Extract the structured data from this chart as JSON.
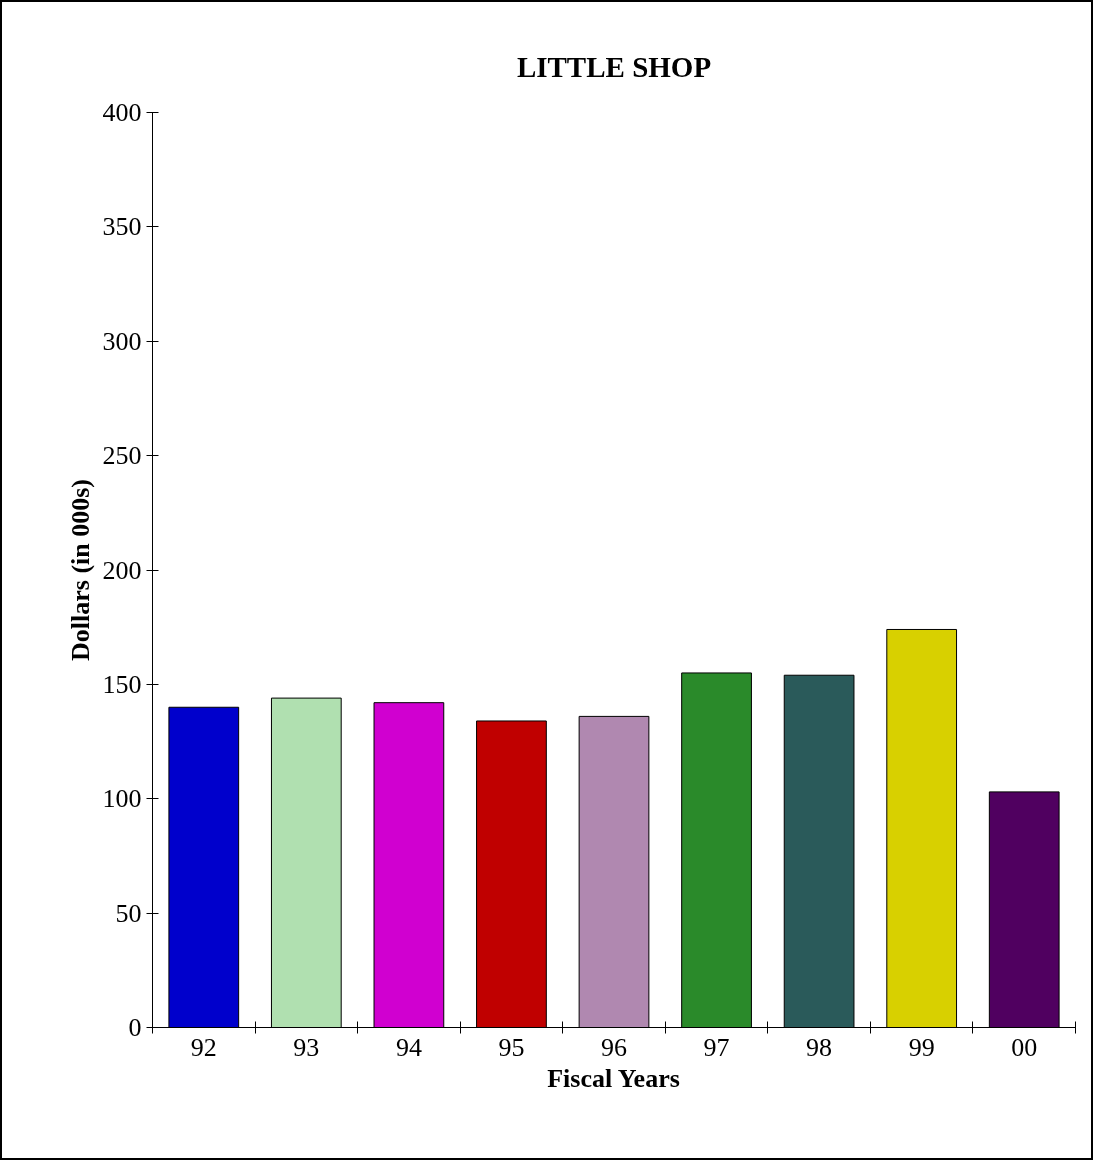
{
  "chart_data": {
    "type": "bar",
    "title": "LITTLE SHOP",
    "xlabel": "Fiscal Years",
    "ylabel": "Dollars (in 000s)",
    "categories": [
      "92",
      "93",
      "94",
      "95",
      "96",
      "97",
      "98",
      "99",
      "00"
    ],
    "values": [
      140,
      144,
      142,
      134,
      136,
      155,
      154,
      174,
      103
    ],
    "colors": [
      "#0000cc",
      "#b0e0b0",
      "#d000d0",
      "#c00000",
      "#b088b0",
      "#2a8a2a",
      "#2a5a5a",
      "#d8d000",
      "#500060"
    ],
    "ylim": [
      0,
      400
    ],
    "yticks": [
      0,
      50,
      100,
      150,
      200,
      250,
      300,
      350,
      400
    ],
    "grid": false
  }
}
